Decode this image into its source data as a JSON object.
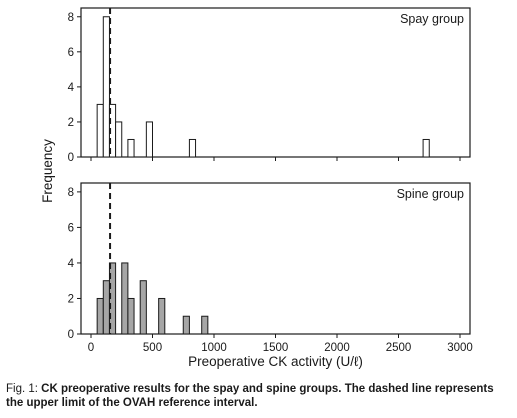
{
  "chart_data": {
    "type": "bar",
    "xlabel": "Preoperative CK activity (U/ℓ)",
    "ylabel": "Frequency",
    "xlim": [
      0,
      3000
    ],
    "xticks": [
      0,
      500,
      1000,
      1500,
      2000,
      2500,
      3000
    ],
    "ylim": [
      0,
      8.5
    ],
    "yticks": [
      0,
      2,
      4,
      6,
      8
    ],
    "bin_width": 50,
    "reference_line_x": 155,
    "panels": [
      {
        "label": "Spay group",
        "fill": "#ffffff",
        "bins": [
          {
            "x": 75,
            "y": 3
          },
          {
            "x": 125,
            "y": 8
          },
          {
            "x": 175,
            "y": 3
          },
          {
            "x": 225,
            "y": 2
          },
          {
            "x": 325,
            "y": 1
          },
          {
            "x": 475,
            "y": 2
          },
          {
            "x": 825,
            "y": 1
          },
          {
            "x": 2725,
            "y": 1
          }
        ]
      },
      {
        "label": "Spine group",
        "fill": "#a6a6a6",
        "bins": [
          {
            "x": 75,
            "y": 2
          },
          {
            "x": 125,
            "y": 3
          },
          {
            "x": 175,
            "y": 4
          },
          {
            "x": 275,
            "y": 4
          },
          {
            "x": 325,
            "y": 2
          },
          {
            "x": 425,
            "y": 3
          },
          {
            "x": 575,
            "y": 2
          },
          {
            "x": 775,
            "y": 1
          },
          {
            "x": 925,
            "y": 1
          }
        ]
      }
    ]
  },
  "caption": {
    "prefix": "Fig. 1: ",
    "text": "CK preoperative results for the spay and spine groups. The dashed line represents the upper limit of the OVAH reference interval."
  }
}
